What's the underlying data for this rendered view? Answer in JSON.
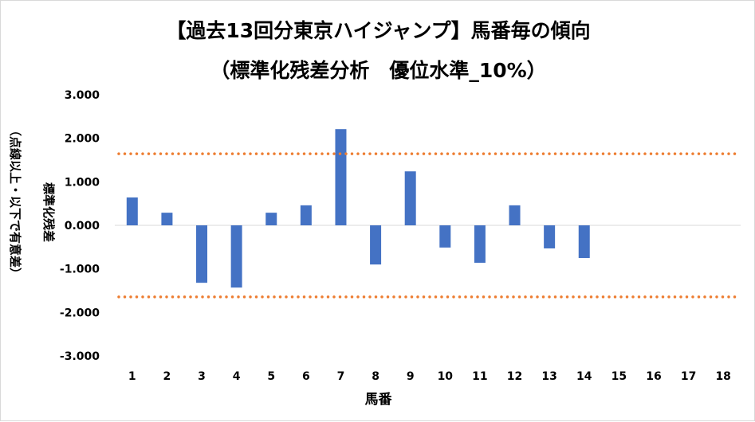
{
  "chart_data": {
    "type": "bar",
    "title": "【過去13回分東京ハイジャンプ】馬番毎の傾向",
    "subtitle": "（標準化残差分析　優位水準_10%）",
    "xlabel": "馬番",
    "ylabel": "標準化残差",
    "ylabel2": "（点線以上・以下で有意差）",
    "categories": [
      "1",
      "2",
      "3",
      "4",
      "5",
      "6",
      "7",
      "8",
      "9",
      "10",
      "11",
      "12",
      "13",
      "14",
      "15",
      "16",
      "17",
      "18"
    ],
    "values": [
      0.64,
      0.29,
      -1.32,
      -1.43,
      0.29,
      0.46,
      2.21,
      -0.9,
      1.24,
      -0.51,
      -0.86,
      0.46,
      -0.53,
      -0.75,
      null,
      null,
      null,
      null
    ],
    "ylim": [
      -3,
      3
    ],
    "yticks": [
      "3.000",
      "2.000",
      "1.000",
      "0.000",
      "-1.000",
      "-2.000",
      "-3.000"
    ],
    "ytick_values": [
      3,
      2,
      1,
      0,
      -1,
      -2,
      -3
    ],
    "threshold_lines": [
      1.645,
      -1.645
    ],
    "bar_color": "#4472C4",
    "line_color": "#ED7D31",
    "grid": false
  }
}
